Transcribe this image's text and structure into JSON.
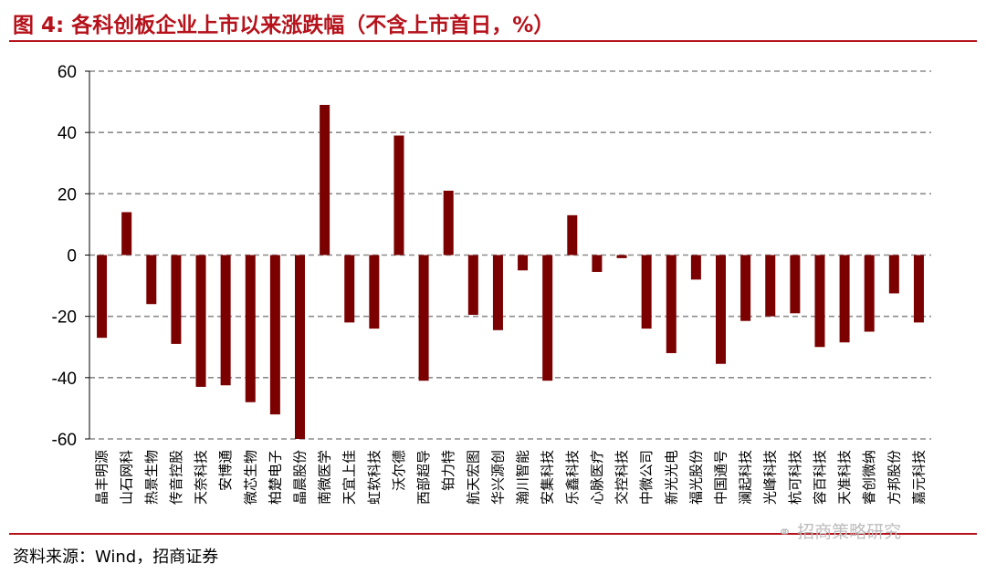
{
  "header": {
    "title": "图 4: 各科创板企业上市以来涨跌幅（不含上市首日，%）"
  },
  "footer": {
    "source": "资料来源：Wind，招商证券",
    "watermark": "招商策略研究",
    "watermark_icon": "wechat-icon"
  },
  "colors": {
    "bar": "#7b0000",
    "accent": "#b5121b",
    "grid": "#8c8c8c"
  },
  "chart_data": {
    "type": "bar",
    "title": "各科创板企业上市以来涨跌幅（不含上市首日，%）",
    "ylim": [
      -60,
      60
    ],
    "yticks": [
      60,
      40,
      20,
      0,
      -20,
      -40,
      -60
    ],
    "grid": true,
    "categories": [
      "晶丰明源",
      "山石网科",
      "热景生物",
      "传音控股",
      "天奈科技",
      "安博通",
      "微芯生物",
      "柏楚电子",
      "晶晨股份",
      "南微医学",
      "天宜上佳",
      "虹软科技",
      "沃尔德",
      "西部超导",
      "铂力特",
      "航天宏图",
      "华兴源创",
      "瀚川智能",
      "安集科技",
      "乐鑫科技",
      "心脉医疗",
      "交控科技",
      "中微公司",
      "新光光电",
      "福光股份",
      "中国通号",
      "澜起科技",
      "光峰科技",
      "杭可科技",
      "容百科技",
      "天准科技",
      "睿创微纳",
      "方邦股份",
      "嘉元科技"
    ],
    "values": [
      -27,
      14,
      -16,
      -29,
      -43,
      -42.5,
      -48,
      -52,
      -60,
      49,
      -22,
      -24,
      39,
      -41,
      21,
      -19.5,
      -24.5,
      -5,
      -41,
      13,
      -5.5,
      -1,
      -24,
      -32,
      -8,
      -35.5,
      -21.5,
      -20,
      -19,
      -30,
      -28.5,
      -25,
      -12.5,
      -22
    ]
  }
}
